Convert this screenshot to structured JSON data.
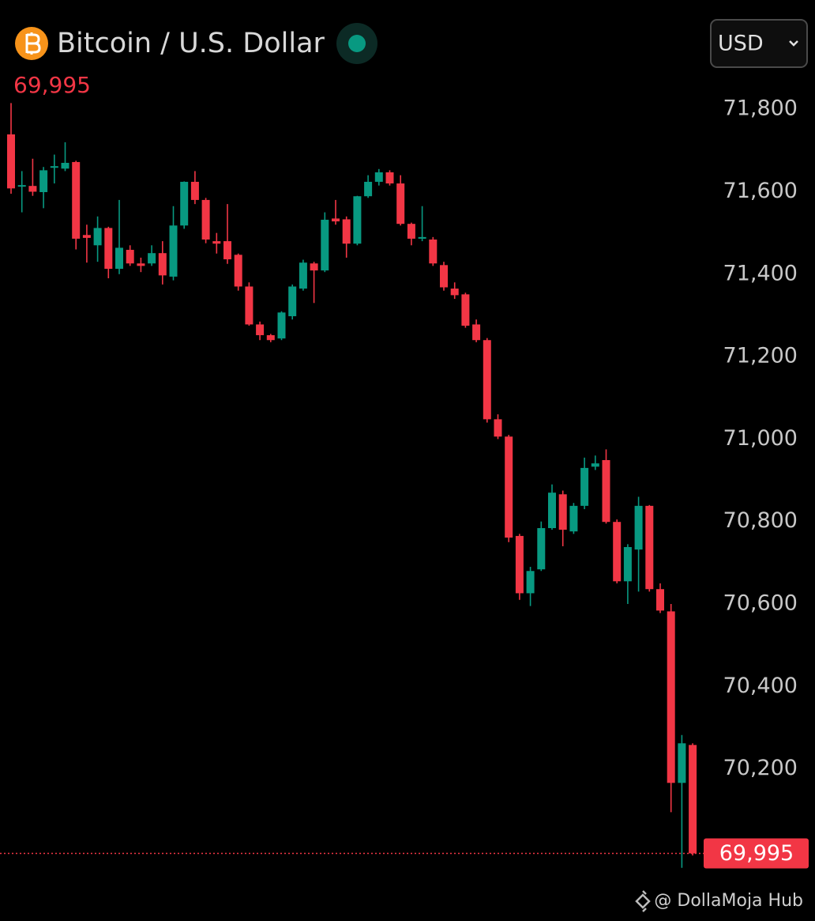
{
  "chart_data": {
    "type": "candlestick",
    "title": "Bitcoin / U.S. Dollar",
    "currency": "USD",
    "last_price": 69995,
    "last_price_label": "69,995",
    "watermark": "@ DollaMoja Hub",
    "up_color": "#089981",
    "down_color": "#f23645",
    "ylim": [
      69831,
      72065
    ],
    "yticks": [
      {
        "value": 70200,
        "label": "70,200"
      },
      {
        "value": 70400,
        "label": "70,400"
      },
      {
        "value": 70600,
        "label": "70,600"
      },
      {
        "value": 70800,
        "label": "70,800"
      },
      {
        "value": 71000,
        "label": "71,000"
      },
      {
        "value": 71200,
        "label": "71,200"
      },
      {
        "value": 71400,
        "label": "71,400"
      },
      {
        "value": 71600,
        "label": "71,600"
      },
      {
        "value": 71800,
        "label": "71,800"
      }
    ],
    "open": [
      71739,
      71615,
      71614,
      71599,
      71658,
      71656,
      71672,
      71495,
      71470,
      71512,
      71413,
      71459,
      71426,
      71426,
      71451,
      71394,
      71518,
      71624,
      71580,
      71480,
      71480,
      71447,
      71370,
      71278,
      71252,
      71244,
      71298,
      71365,
      71426,
      71409,
      71535,
      71533,
      71474,
      71589,
      71624,
      71647,
      71620,
      71522,
      71486,
      71484,
      71422,
      71365,
      71351,
      71278,
      71240,
      71048,
      71006,
      70765,
      70626,
      70684,
      70784,
      70866,
      70776,
      70838,
      70933,
      70949,
      70799,
      70655,
      70732,
      70838,
      70636,
      70582,
      70166,
      70258
    ],
    "high": [
      71815,
      71650,
      71680,
      71660,
      71690,
      71720,
      71675,
      71520,
      71540,
      71515,
      71580,
      71470,
      71440,
      71470,
      71480,
      71565,
      71625,
      71650,
      71585,
      71500,
      71570,
      71450,
      71380,
      71285,
      71255,
      71310,
      71375,
      71435,
      71430,
      71550,
      71580,
      71540,
      71590,
      71640,
      71655,
      71652,
      71640,
      71525,
      71565,
      71490,
      71430,
      71380,
      71355,
      71290,
      71245,
      71060,
      71010,
      70770,
      70690,
      70800,
      70890,
      70875,
      70845,
      70955,
      70960,
      70975,
      70805,
      70745,
      70860,
      70840,
      70650,
      70600,
      70282,
      70262
    ],
    "low": [
      71595,
      71550,
      71590,
      71560,
      71620,
      71650,
      71460,
      71428,
      71430,
      71390,
      71400,
      71420,
      71405,
      71420,
      71375,
      71385,
      71510,
      71570,
      71475,
      71450,
      71425,
      71360,
      71275,
      71240,
      71235,
      71240,
      71290,
      71360,
      71330,
      71405,
      71520,
      71440,
      71470,
      71585,
      71615,
      71615,
      71518,
      71470,
      71480,
      71420,
      71360,
      71340,
      71270,
      71235,
      71040,
      71000,
      70750,
      70610,
      70595,
      70680,
      70780,
      70740,
      70770,
      70830,
      70925,
      70795,
      70650,
      70600,
      70630,
      70630,
      70578,
      70095,
      69960,
      69990
    ],
    "close": [
      71608,
      71616,
      71600,
      71652,
      71662,
      71670,
      71486,
      71488,
      71512,
      71413,
      71464,
      71426,
      71420,
      71451,
      71397,
      71518,
      71624,
      71580,
      71484,
      71474,
      71436,
      71370,
      71278,
      71252,
      71240,
      71307,
      71370,
      71428,
      71409,
      71532,
      71528,
      71474,
      71589,
      71624,
      71647,
      71620,
      71522,
      71486,
      71490,
      71426,
      71368,
      71349,
      71275,
      71240,
      71048,
      71006,
      70761,
      70626,
      70680,
      70784,
      70870,
      70780,
      70838,
      70930,
      70941,
      70799,
      70655,
      70738,
      70838,
      70636,
      70584,
      70166,
      70262,
      69995
    ]
  }
}
